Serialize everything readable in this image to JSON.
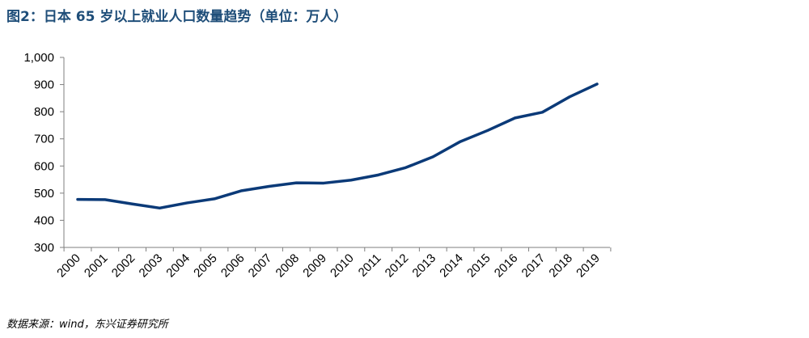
{
  "chart_data": {
    "type": "line",
    "title": "图2：日本 65 岁以上就业人口数量趋势（单位：万人）",
    "xlabel": "",
    "ylabel": "",
    "categories": [
      "2000",
      "2001",
      "2002",
      "2003",
      "2004",
      "2005",
      "2006",
      "2007",
      "2008",
      "2009",
      "2010",
      "2011",
      "2012",
      "2013",
      "2014",
      "2015",
      "2016",
      "2017",
      "2018",
      "2019"
    ],
    "series": [
      {
        "name": "65岁以上就业人口",
        "values": [
          477,
          476,
          460,
          445,
          464,
          479,
          509,
          525,
          538,
          537,
          548,
          567,
          594,
          634,
          690,
          731,
          777,
          798,
          855,
          902
        ],
        "color": "#0b3a78"
      }
    ],
    "ylim": [
      300,
      1000
    ],
    "yticks": [
      300,
      400,
      500,
      600,
      700,
      800,
      900,
      1000
    ],
    "ytick_labels": [
      "300",
      "400",
      "500",
      "600",
      "700",
      "800",
      "900",
      "1,000"
    ],
    "grid": false,
    "legend": "none"
  },
  "source": "数据来源：wind，东兴证券研究所"
}
